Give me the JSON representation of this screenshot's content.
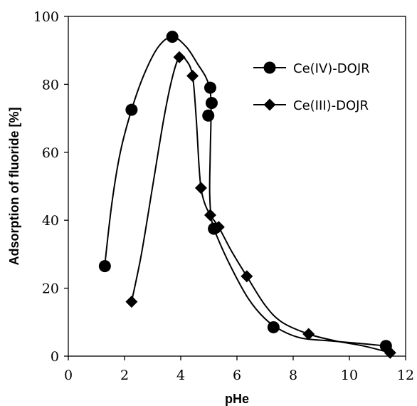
{
  "chart_data": {
    "type": "scatter",
    "xlabel": "pHe",
    "ylabel": "Adsorption of fluoride [%]",
    "xlim": [
      0,
      12
    ],
    "ylim": [
      0,
      100
    ],
    "x_ticks": [
      0,
      2,
      4,
      6,
      8,
      10,
      12
    ],
    "y_ticks": [
      0,
      20,
      40,
      60,
      80,
      100
    ],
    "grid": false,
    "legend_position": "top-right",
    "series": [
      {
        "name": "Ce(IV)-DOJR",
        "marker": "circle",
        "color": "#000000",
        "points": [
          {
            "x": 1.3,
            "y": 26.5
          },
          {
            "x": 2.25,
            "y": 72.5
          },
          {
            "x": 3.7,
            "y": 94.0
          },
          {
            "x": 5.05,
            "y": 79.0
          },
          {
            "x": 4.98,
            "y": 70.8
          },
          {
            "x": 5.1,
            "y": 74.5
          },
          {
            "x": 5.18,
            "y": 37.5
          },
          {
            "x": 7.3,
            "y": 8.5
          },
          {
            "x": 11.3,
            "y": 3.0
          }
        ],
        "curve": [
          {
            "x": 1.3,
            "y": 27
          },
          {
            "x": 1.55,
            "y": 45
          },
          {
            "x": 1.85,
            "y": 60
          },
          {
            "x": 2.25,
            "y": 72.5
          },
          {
            "x": 2.7,
            "y": 83
          },
          {
            "x": 3.2,
            "y": 91
          },
          {
            "x": 3.7,
            "y": 94
          },
          {
            "x": 4.2,
            "y": 91
          },
          {
            "x": 4.6,
            "y": 86
          },
          {
            "x": 4.9,
            "y": 82
          },
          {
            "x": 5.05,
            "y": 78
          },
          {
            "x": 5.08,
            "y": 72
          },
          {
            "x": 5.05,
            "y": 60
          },
          {
            "x": 5.03,
            "y": 48
          },
          {
            "x": 5.1,
            "y": 40
          },
          {
            "x": 5.3,
            "y": 35
          },
          {
            "x": 5.8,
            "y": 26
          },
          {
            "x": 6.4,
            "y": 17
          },
          {
            "x": 7.0,
            "y": 11
          },
          {
            "x": 7.6,
            "y": 7.5
          },
          {
            "x": 8.3,
            "y": 5.3
          },
          {
            "x": 9.3,
            "y": 4.5
          },
          {
            "x": 10.3,
            "y": 3.8
          },
          {
            "x": 11.3,
            "y": 3.0
          }
        ]
      },
      {
        "name": "Ce(III)-DOJR",
        "marker": "diamond",
        "color": "#000000",
        "points": [
          {
            "x": 2.25,
            "y": 16.0
          },
          {
            "x": 3.95,
            "y": 88.0
          },
          {
            "x": 4.42,
            "y": 82.5
          },
          {
            "x": 4.72,
            "y": 49.5
          },
          {
            "x": 5.05,
            "y": 41.5
          },
          {
            "x": 5.35,
            "y": 38.0
          },
          {
            "x": 6.35,
            "y": 23.5
          },
          {
            "x": 8.55,
            "y": 6.5
          },
          {
            "x": 11.45,
            "y": 1.0
          }
        ],
        "curve": [
          {
            "x": 2.25,
            "y": 16
          },
          {
            "x": 2.6,
            "y": 30
          },
          {
            "x": 3.0,
            "y": 50
          },
          {
            "x": 3.4,
            "y": 70
          },
          {
            "x": 3.7,
            "y": 82
          },
          {
            "x": 3.95,
            "y": 88
          },
          {
            "x": 4.2,
            "y": 87
          },
          {
            "x": 4.42,
            "y": 82.5
          },
          {
            "x": 4.55,
            "y": 70
          },
          {
            "x": 4.65,
            "y": 56
          },
          {
            "x": 4.72,
            "y": 49.5
          },
          {
            "x": 4.85,
            "y": 45
          },
          {
            "x": 5.05,
            "y": 41.5
          },
          {
            "x": 5.35,
            "y": 38
          },
          {
            "x": 5.8,
            "y": 31
          },
          {
            "x": 6.35,
            "y": 23.5
          },
          {
            "x": 7.0,
            "y": 15
          },
          {
            "x": 7.6,
            "y": 10
          },
          {
            "x": 8.55,
            "y": 6.5
          },
          {
            "x": 9.5,
            "y": 4.5
          },
          {
            "x": 10.5,
            "y": 3.0
          },
          {
            "x": 11.45,
            "y": 1.0
          }
        ]
      }
    ]
  }
}
